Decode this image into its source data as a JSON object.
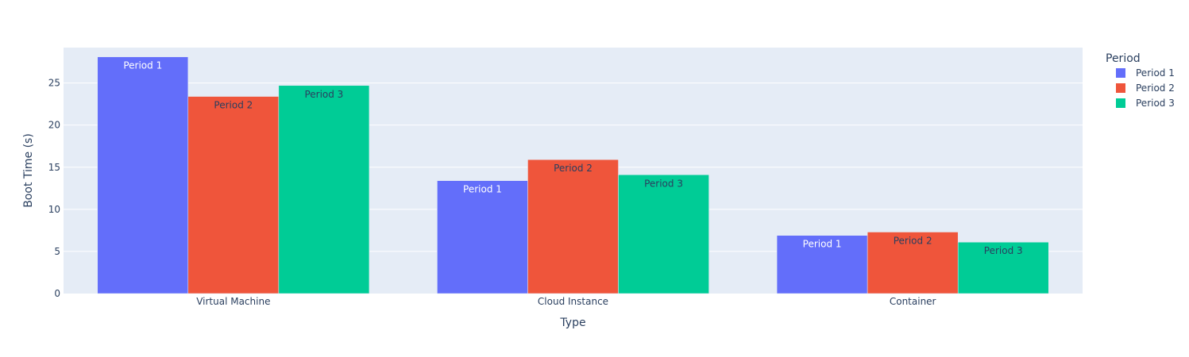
{
  "chart_data": {
    "type": "bar",
    "categories": [
      "Virtual Machine",
      "Cloud Instance",
      "Container"
    ],
    "series": [
      {
        "name": "Period 1",
        "values": [
          28.1,
          13.4,
          6.9
        ],
        "color": "#636efa",
        "label_color": "#ffffff"
      },
      {
        "name": "Period 2",
        "values": [
          23.4,
          15.9,
          7.3
        ],
        "color": "#ef553b",
        "label_color": "#2a3f5f"
      },
      {
        "name": "Period 3",
        "values": [
          24.7,
          14.1,
          6.1
        ],
        "color": "#00cc96",
        "label_color": "#2a3f5f"
      }
    ],
    "title": "",
    "xlabel": "Type",
    "ylabel": "Boot Time (s)",
    "ylim": [
      0,
      29.2
    ],
    "yticks": [
      0,
      5,
      10,
      15,
      20,
      25
    ],
    "grid": true,
    "legend_title": "Period",
    "legend_position": "top-right",
    "plot_bgcolor": "#e5ecf6"
  }
}
